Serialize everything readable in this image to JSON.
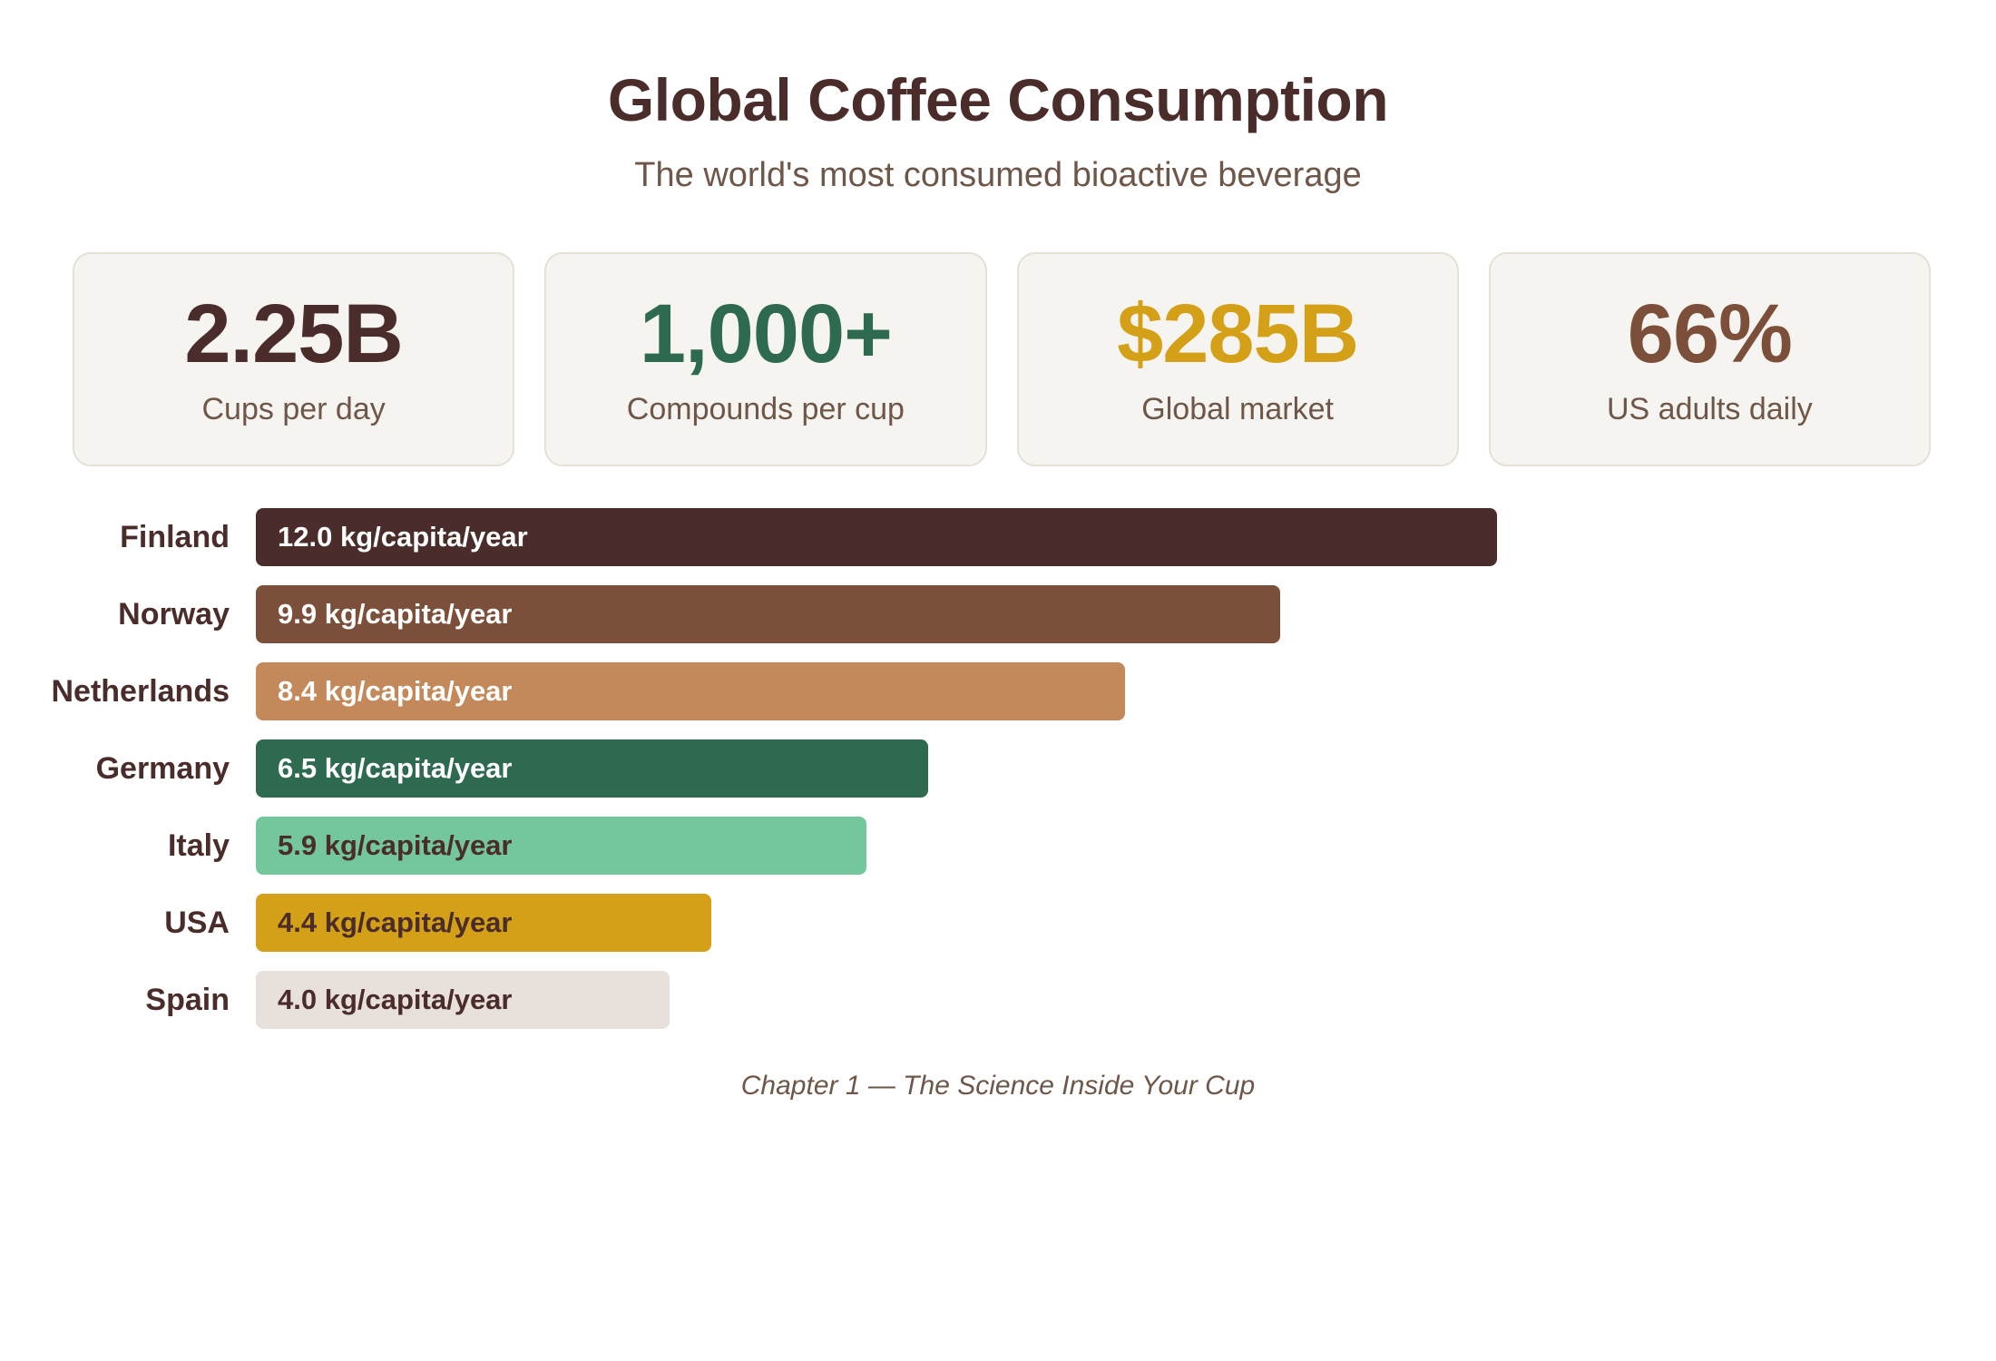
{
  "title": "Global Coffee Consumption",
  "subtitle": "The world's most consumed bioactive beverage",
  "stats": [
    {
      "value": "2.25B",
      "label": "Cups per day",
      "color": "#4a2c2a"
    },
    {
      "value": "1,000+",
      "label": "Compounds per cup",
      "color": "#2d6a4f"
    },
    {
      "value": "$285B",
      "label": "Global market",
      "color": "#d4a017"
    },
    {
      "value": "66%",
      "label": "US adults daily",
      "color": "#7b4f3a"
    }
  ],
  "chart_data": {
    "type": "bar",
    "orientation": "horizontal",
    "categories": [
      "Finland",
      "Norway",
      "Netherlands",
      "Germany",
      "Italy",
      "USA",
      "Spain"
    ],
    "values": [
      12.0,
      9.9,
      8.4,
      6.5,
      5.9,
      4.4,
      4.0
    ],
    "unit": "kg/capita/year",
    "value_labels": [
      "12.0 kg/capita/year",
      "9.9 kg/capita/year",
      "8.4 kg/capita/year",
      "6.5 kg/capita/year",
      "5.9 kg/capita/year",
      "4.4 kg/capita/year",
      "4.0 kg/capita/year"
    ],
    "colors": [
      "#4a2c2a",
      "#7b4f3a",
      "#c4895a",
      "#2d6a4f",
      "#74c69d",
      "#d4a017",
      "#e8e0da"
    ],
    "label_colors": [
      "#ffffff",
      "#ffffff",
      "#ffffff",
      "#ffffff",
      "#4a2c2a",
      "#4a2c2a",
      "#4a2c2a"
    ],
    "xlim": [
      0,
      12.0
    ],
    "grid": false,
    "legend": "none"
  },
  "caption": "Chapter 1 — The Science Inside Your Cup"
}
